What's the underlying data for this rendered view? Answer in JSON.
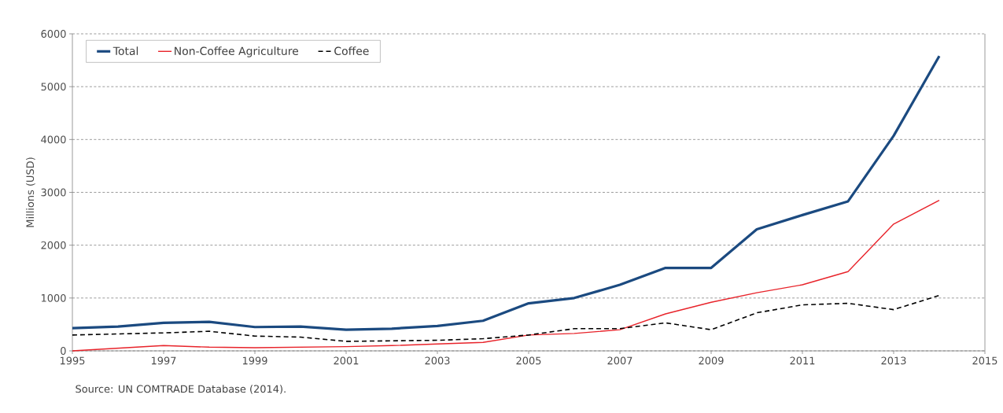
{
  "chart_data": {
    "type": "line",
    "ylabel": "Millions (USD)",
    "annotations": [
      "Source: UN COMTRADE Database (2014)."
    ],
    "x": [
      1995,
      1996,
      1997,
      1998,
      1999,
      2000,
      2001,
      2002,
      2003,
      2004,
      2005,
      2006,
      2007,
      2008,
      2009,
      2010,
      2011,
      2012,
      2013,
      2014
    ],
    "series": [
      {
        "name": "Total",
        "color": "#1b4a80",
        "line_style": "solid",
        "values": [
          430,
          460,
          530,
          550,
          450,
          460,
          400,
          420,
          470,
          570,
          900,
          1000,
          1250,
          1570,
          1570,
          2300,
          2570,
          2830,
          4070,
          5580
        ]
      },
      {
        "name": "Non-Coffee Agriculture",
        "color": "#e8232a",
        "line_style": "solid",
        "values": [
          0,
          50,
          100,
          70,
          60,
          70,
          80,
          100,
          130,
          160,
          300,
          330,
          400,
          700,
          920,
          1100,
          1250,
          1500,
          2400,
          2850
        ]
      },
      {
        "name": "Coffee",
        "color": "#000000",
        "line_style": "dashed",
        "values": [
          300,
          320,
          340,
          370,
          280,
          260,
          180,
          190,
          200,
          230,
          300,
          420,
          420,
          530,
          400,
          720,
          870,
          900,
          780,
          1050
        ]
      }
    ],
    "xlim": [
      1995,
      2015
    ],
    "ylim": [
      0,
      6000
    ],
    "xticks": [
      1995,
      1997,
      1999,
      2001,
      2003,
      2005,
      2007,
      2009,
      2011,
      2013,
      2015
    ],
    "yticks": [
      0,
      1000,
      2000,
      3000,
      4000,
      5000,
      6000
    ],
    "grid": "y",
    "legend": "top left",
    "marker": "none"
  }
}
